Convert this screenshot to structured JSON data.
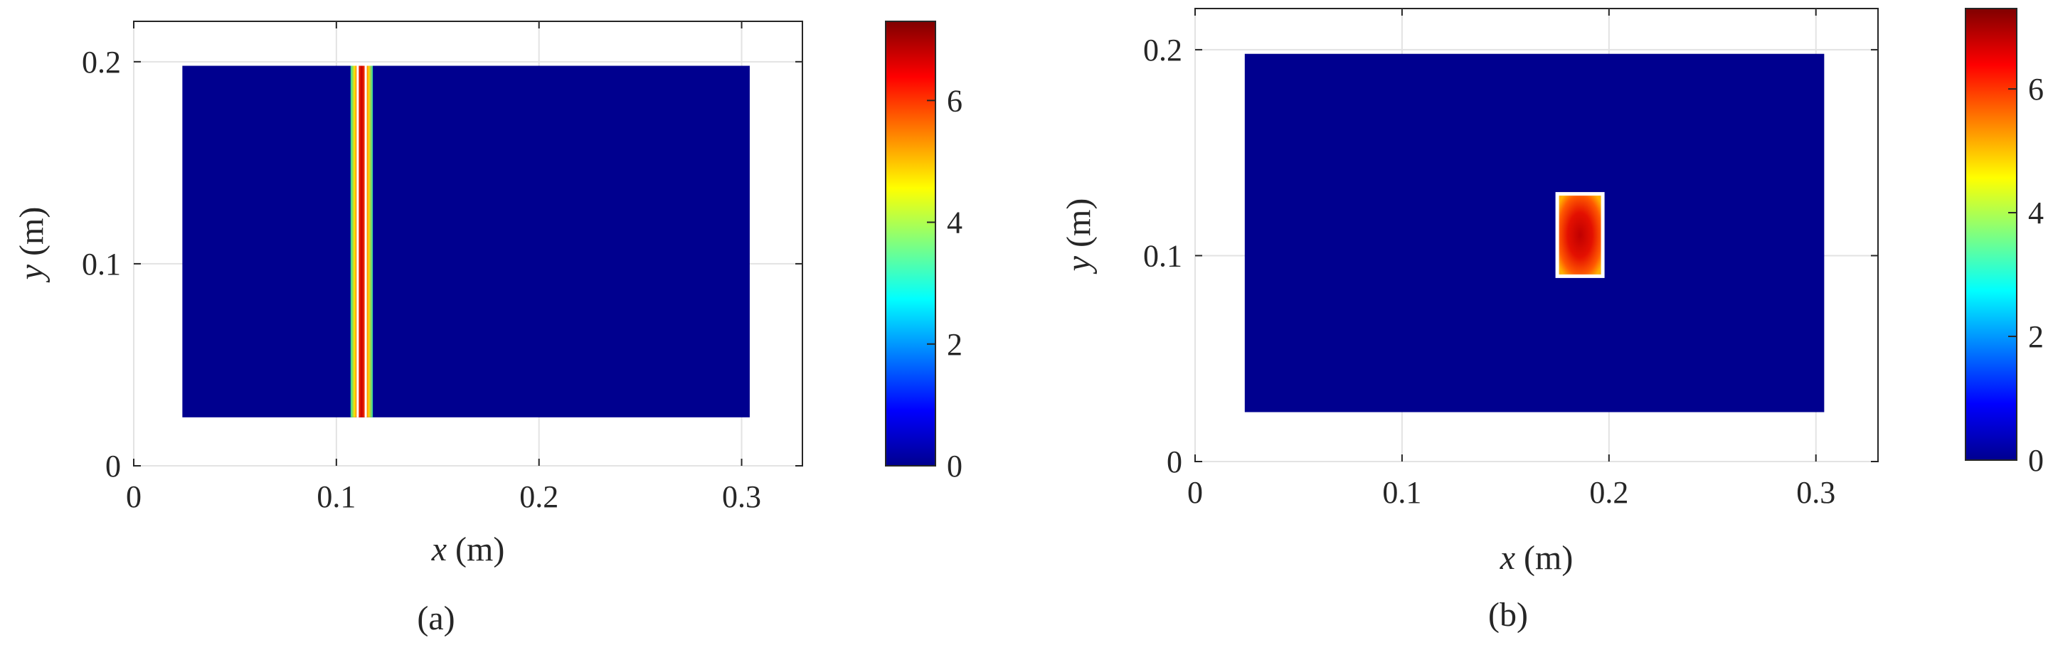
{
  "chart_data": [
    {
      "type": "heatmap",
      "label": "(a)",
      "xlabel": {
        "var": "x",
        "unit": " (m)"
      },
      "ylabel": {
        "var": "y",
        "unit": " (m)"
      },
      "xlim": [
        0,
        0.33
      ],
      "ylim": [
        0,
        0.22
      ],
      "xticks": [
        0,
        0.1,
        0.2,
        0.3
      ],
      "xtick_labels": [
        "0",
        "0.1",
        "0.2",
        "0.3"
      ],
      "yticks": [
        0,
        0.1,
        0.2
      ],
      "ytick_labels": [
        "0",
        "0.1",
        "0.2"
      ],
      "grid": true,
      "colormap": "jet",
      "clim": [
        0,
        7.3
      ],
      "colorbar_ticks": [
        0,
        2,
        4,
        6
      ],
      "colorbar_tick_labels": [
        "0",
        "2",
        "4",
        "6"
      ],
      "domain": {
        "x": [
          0.024,
          0.304
        ],
        "y": [
          0.024,
          0.198
        ],
        "value": 0
      },
      "anomaly": {
        "shape": "vertical-band",
        "x": [
          0.107,
          0.118
        ],
        "y": [
          0.024,
          0.198
        ],
        "peak_value": 7.0,
        "outline_color": "#ffffff"
      }
    },
    {
      "type": "heatmap",
      "label": "(b)",
      "xlabel": {
        "var": "x",
        "unit": " (m)"
      },
      "ylabel": {
        "var": "y",
        "unit": " (m)"
      },
      "xlim": [
        0,
        0.33
      ],
      "ylim": [
        0,
        0.22
      ],
      "xticks": [
        0,
        0.1,
        0.2,
        0.3
      ],
      "xtick_labels": [
        "0",
        "0.1",
        "0.2",
        "0.3"
      ],
      "yticks": [
        0,
        0.1,
        0.2
      ],
      "ytick_labels": [
        "0",
        "0.1",
        "0.2"
      ],
      "grid": true,
      "colormap": "jet",
      "clim": [
        0,
        7.3
      ],
      "colorbar_ticks": [
        0,
        2,
        4,
        6
      ],
      "colorbar_tick_labels": [
        "0",
        "2",
        "4",
        "6"
      ],
      "domain": {
        "x": [
          0.024,
          0.304
        ],
        "y": [
          0.024,
          0.198
        ],
        "value": 0
      },
      "anomaly": {
        "shape": "rectangle",
        "x": [
          0.175,
          0.197
        ],
        "y": [
          0.09,
          0.13
        ],
        "peak_value": 7.0,
        "outline_color": "#ffffff"
      }
    }
  ]
}
